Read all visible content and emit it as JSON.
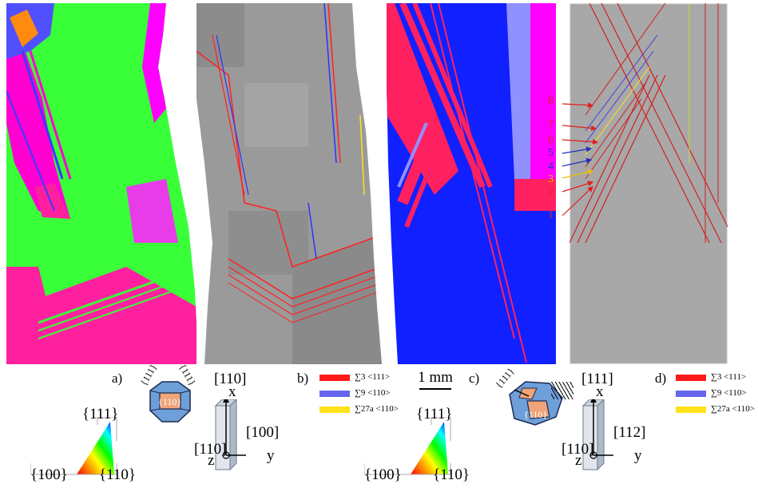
{
  "panel_labels": {
    "a": "a)",
    "b": "b)",
    "c": "c)",
    "d": "d)"
  },
  "scale_bar": "1 mm",
  "figure_a": {
    "triangle_top": "{111}",
    "triangle_left": "{100}",
    "triangle_right": "{110}",
    "crystal_center": "{110}",
    "crystal_left": "{111}",
    "crystal_right": "{111}",
    "axis_x_dir": "[110]",
    "axis_x": "x",
    "axis_y_dir": "[100]",
    "axis_y": "y",
    "axis_z_dir": "[110]",
    "axis_z": "z"
  },
  "figure_c": {
    "triangle_top": "{111}",
    "triangle_left": "{100}",
    "triangle_right": "{110}",
    "crystal_center": "{110}",
    "crystal_left": "{111}",
    "axis_x_dir": "[111]",
    "axis_x": "x",
    "axis_y_dir": "[112]",
    "axis_y": "y",
    "axis_z_dir": "[110]",
    "axis_z": "z"
  },
  "legend_b": [
    {
      "label": "∑3 <111>",
      "color": "#ff1a1a"
    },
    {
      "label": "∑9 <110>",
      "color": "#6666ee"
    },
    {
      "label": "∑27a <110>",
      "color": "#ffe21a"
    }
  ],
  "legend_d": [
    {
      "label": "∑3 <111>",
      "color": "#ff1a1a"
    },
    {
      "label": "∑9 <110>",
      "color": "#6666ee"
    },
    {
      "label": "∑27a <110>",
      "color": "#ffe21a"
    }
  ],
  "boundary_numbers": [
    {
      "label": "8",
      "color": "#e02020"
    },
    {
      "label": "7",
      "color": "#e02020"
    },
    {
      "label": "6",
      "color": "#e02020"
    },
    {
      "label": "5",
      "color": "#2030c0"
    },
    {
      "label": "4",
      "color": "#2030c0"
    },
    {
      "label": "3",
      "color": "#e8c000"
    },
    {
      "label": "2",
      "color": "#e02020"
    },
    {
      "label": "1",
      "color": "#e02020"
    }
  ]
}
